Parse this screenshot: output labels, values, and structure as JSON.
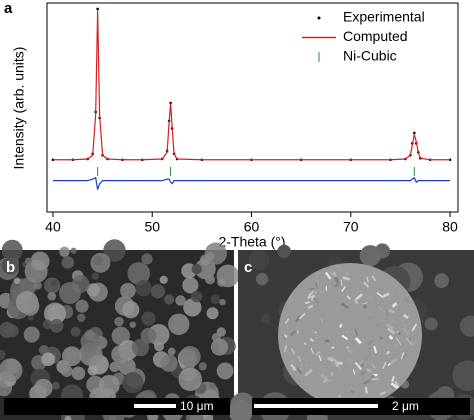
{
  "chart_data": {
    "type": "line",
    "panel_label": "a",
    "xlabel": "2-Theta (°)",
    "ylabel": "Intensity (arb. units)",
    "x": [
      40,
      42,
      43.5,
      44,
      44.3,
      44.5,
      44.7,
      45,
      45.5,
      47,
      49,
      51,
      51.5,
      51.7,
      51.85,
      52,
      52.2,
      52.5,
      55,
      60,
      65,
      70,
      74,
      75.5,
      76,
      76.2,
      76.4,
      76.6,
      76.8,
      77,
      78,
      80
    ],
    "series": [
      {
        "name": "Experimental",
        "color": "#000000",
        "style": "points",
        "values": [
          0,
          0,
          0.5,
          4,
          32,
          101,
          28,
          3,
          0.5,
          0,
          0,
          0.5,
          6,
          26,
          38,
          21,
          4,
          0.5,
          0,
          0,
          0,
          0,
          0,
          0.5,
          3,
          11,
          18,
          11,
          5,
          1,
          0,
          0
        ]
      },
      {
        "name": "Computed",
        "color": "#d42020",
        "style": "line",
        "values": [
          0,
          0,
          0.5,
          3,
          30,
          100,
          30,
          3,
          0.5,
          0,
          0,
          0.5,
          5,
          25,
          38,
          22,
          4,
          0.5,
          0,
          0,
          0,
          0,
          0,
          0.5,
          3,
          10,
          17,
          12,
          5,
          1,
          0,
          0
        ]
      },
      {
        "name": "Ni-Cubic",
        "color": "#2e8b2e",
        "style": "ticks",
        "x": [
          44.5,
          51.85,
          76.4
        ]
      },
      {
        "color": "#1f3fbf",
        "style": "line",
        "values": [
          -14,
          -14,
          -14,
          -13,
          -12,
          -20,
          -16,
          -14,
          -14,
          -14,
          -14,
          -14,
          -13,
          -13,
          -15,
          -16,
          -14,
          -14,
          -14,
          -14,
          -14,
          -14,
          -14,
          -14,
          -14,
          -13,
          -12,
          -15,
          -14,
          -14,
          -14,
          -14
        ]
      }
    ],
    "xlim": [
      39.4,
      80.8
    ],
    "ylim": [
      -35,
      105
    ],
    "xticks": [
      40,
      50,
      60,
      70,
      80
    ],
    "legend": "upper right"
  },
  "images": [
    {
      "panel_label": "b",
      "scale_bar": "10 μm"
    },
    {
      "panel_label": "c",
      "scale_bar": "2 μm"
    }
  ]
}
